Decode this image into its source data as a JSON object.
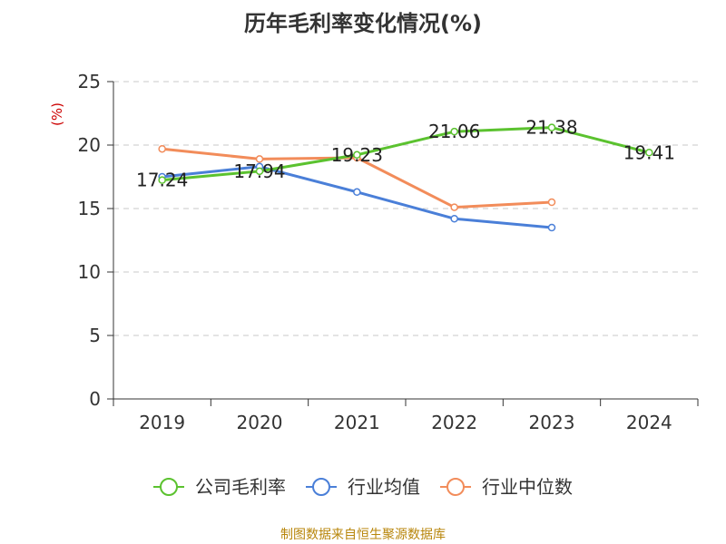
{
  "chart_data": {
    "type": "line",
    "title": "历年毛利率变化情况(%)",
    "ylabel": "(%)",
    "xlabel": "",
    "categories": [
      "2019",
      "2020",
      "2021",
      "2022",
      "2023",
      "2024"
    ],
    "ylim": [
      0,
      25
    ],
    "yticks": [
      "0",
      "5",
      "10",
      "15",
      "20",
      "25"
    ],
    "grid": "horizontal-dashed",
    "legend_position": "bottom",
    "series": [
      {
        "name": "公司毛利率",
        "color": "#5bc22f",
        "values": [
          17.24,
          17.94,
          19.23,
          21.06,
          21.38,
          19.41
        ],
        "labels": [
          "17.24",
          "17.94",
          "19.23",
          "21.06",
          "21.38",
          "19.41"
        ]
      },
      {
        "name": "行业均值",
        "color": "#4a7fd8",
        "values": [
          17.5,
          18.3,
          16.3,
          14.2,
          13.5,
          null
        ],
        "labels": []
      },
      {
        "name": "行业中位数",
        "color": "#f28c5a",
        "values": [
          19.7,
          18.9,
          19.0,
          15.1,
          15.5,
          null
        ],
        "labels": []
      }
    ]
  },
  "footer": {
    "source": "制图数据来自恒生聚源数据库"
  }
}
